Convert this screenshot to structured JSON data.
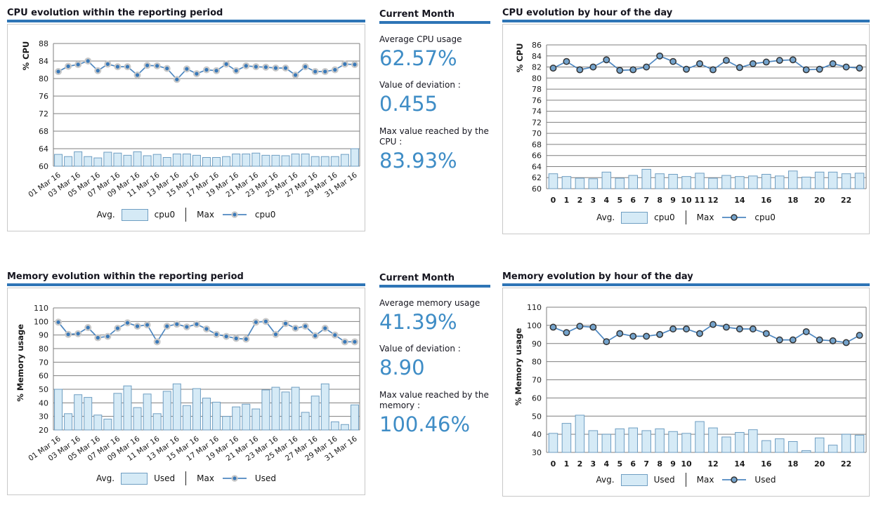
{
  "colors": {
    "accent": "#2e75b6",
    "title_text": "#15151f",
    "value_text": "#3f8dc6",
    "text": "#1a1a1a",
    "grid": "#7f7f7f",
    "panel_border": "#c8c8c8",
    "bar_fill": "#d5eaf6",
    "bar_stroke": "#6f9ec2",
    "line": "#4e87c0",
    "marker_fill": "#3878b8",
    "marker_ring": "#c8c8c8",
    "hourly_marker_fill": "#74a3cc",
    "hourly_marker_stroke": "#333333"
  },
  "summaries": [
    {
      "title": "Current Month",
      "items": [
        {
          "label": "Average CPU usage",
          "value": "62.57%"
        },
        {
          "label": "Value of deviation :",
          "value": "0.455"
        },
        {
          "label": "Max value reached by the CPU :",
          "value": "83.93%"
        }
      ]
    },
    {
      "title": "Current Month",
      "items": [
        {
          "label": "Average memory usage",
          "value": "41.39%"
        },
        {
          "label": "Value of deviation :",
          "value": "8.90"
        },
        {
          "label": "Max value reached by the memory :",
          "value": "100.46%"
        }
      ]
    }
  ],
  "chart_data": [
    {
      "id": "cpu-period",
      "type": "bar",
      "title": "CPU evolution within the reporting period",
      "ylabel": "% CPU",
      "ylim": [
        60,
        88
      ],
      "ystep": 4,
      "grid": "horizontal",
      "legend_position": "bottom",
      "marker_style": "halo",
      "xtick_rotation": -35,
      "categories": [
        "01 Mar 16",
        "02 Mar 16",
        "03 Mar 16",
        "04 Mar 16",
        "05 Mar 16",
        "06 Mar 16",
        "07 Mar 16",
        "08 Mar 16",
        "09 Mar 16",
        "10 Mar 16",
        "11 Mar 16",
        "12 Mar 16",
        "13 Mar 16",
        "14 Mar 16",
        "15 Mar 16",
        "16 Mar 16",
        "17 Mar 16",
        "18 Mar 16",
        "19 Mar 16",
        "20 Mar 16",
        "21 Mar 16",
        "22 Mar 16",
        "23 Mar 16",
        "24 Mar 16",
        "25 Mar 16",
        "26 Mar 16",
        "27 Mar 16",
        "28 Mar 16",
        "29 Mar 16",
        "30 Mar 16",
        "31 Mar 16"
      ],
      "xtick_labels": [
        "01 Mar 16",
        "03 Mar 16",
        "05 Mar 16",
        "07 Mar 16",
        "09 Mar 16",
        "11 Mar 16",
        "13 Mar 16",
        "15 Mar 16",
        "17 Mar 16",
        "19 Mar 16",
        "21 Mar 16",
        "23 Mar 16",
        "25 Mar 16",
        "27 Mar 16",
        "29 Mar 16",
        "31 Mar 16"
      ],
      "legend": {
        "avg_label": "Avg.",
        "avg_series": "cpu0",
        "max_label": "Max",
        "max_series": "cpu0"
      },
      "series": [
        {
          "name": "cpu0",
          "role": "Avg.",
          "type": "bar",
          "values": [
            62.7,
            62.2,
            63.3,
            62.2,
            61.9,
            63.2,
            63.0,
            62.5,
            63.3,
            62.4,
            62.7,
            62.0,
            62.8,
            62.8,
            62.5,
            62.0,
            62.0,
            62.2,
            62.8,
            62.8,
            63.0,
            62.5,
            62.5,
            62.4,
            62.8,
            62.8,
            62.2,
            62.2,
            62.2,
            62.7,
            64.0
          ]
        },
        {
          "name": "cpu0",
          "role": "Max",
          "type": "line",
          "values": [
            81.6,
            82.8,
            83.2,
            84.0,
            81.8,
            83.3,
            82.7,
            82.7,
            80.8,
            83.0,
            82.9,
            82.3,
            79.8,
            82.2,
            81.1,
            82.0,
            81.8,
            83.3,
            81.8,
            82.9,
            82.7,
            82.6,
            82.4,
            82.4,
            80.8,
            82.7,
            81.6,
            81.6,
            82.0,
            83.3,
            83.2
          ]
        }
      ]
    },
    {
      "id": "cpu-hourly",
      "type": "bar",
      "title": "CPU evolution by hour of the day",
      "ylabel": "% CPU",
      "ylim": [
        60,
        86
      ],
      "ystep": 2,
      "grid": "horizontal",
      "legend_position": "bottom",
      "marker_style": "outline",
      "xtick_rotation": 0,
      "categories": [
        "0",
        "1",
        "2",
        "3",
        "4",
        "5",
        "6",
        "7",
        "8",
        "9",
        "10",
        "11",
        "12",
        "13",
        "14",
        "15",
        "16",
        "17",
        "18",
        "19",
        "20",
        "21",
        "22",
        "23"
      ],
      "xtick_labels": [
        "0",
        "1",
        "2",
        "3",
        "4",
        "5",
        "6",
        "7",
        "8",
        "9",
        "10",
        "11",
        "12",
        "14",
        "16",
        "18",
        "20",
        "22"
      ],
      "legend": {
        "avg_label": "Avg.",
        "avg_series": "cpu0",
        "max_label": "Max",
        "max_series": "cpu0"
      },
      "series": [
        {
          "name": "cpu0",
          "role": "Avg.",
          "type": "bar",
          "values": [
            62.7,
            62.2,
            61.9,
            61.8,
            63.0,
            61.9,
            62.4,
            63.5,
            62.7,
            62.6,
            62.2,
            62.8,
            61.9,
            62.4,
            62.2,
            62.3,
            62.6,
            62.3,
            63.2,
            62.1,
            63.0,
            63.0,
            62.7,
            62.8
          ]
        },
        {
          "name": "cpu0",
          "role": "Max",
          "type": "line",
          "values": [
            81.8,
            83.0,
            81.5,
            82.0,
            83.3,
            81.4,
            81.5,
            82.0,
            84.0,
            83.0,
            81.6,
            82.6,
            81.5,
            83.2,
            81.9,
            82.6,
            82.9,
            83.2,
            83.3,
            81.5,
            81.6,
            82.6,
            82.0,
            81.8
          ]
        }
      ]
    },
    {
      "id": "mem-period",
      "type": "bar",
      "title": "Memory evolution within the reporting period",
      "ylabel": "% Memory usage",
      "ylim": [
        20,
        110
      ],
      "ystep": 10,
      "grid": "horizontal",
      "legend_position": "bottom",
      "marker_style": "halo",
      "xtick_rotation": -35,
      "categories": [
        "01 Mar 16",
        "02 Mar 16",
        "03 Mar 16",
        "04 Mar 16",
        "05 Mar 16",
        "06 Mar 16",
        "07 Mar 16",
        "08 Mar 16",
        "09 Mar 16",
        "10 Mar 16",
        "11 Mar 16",
        "12 Mar 16",
        "13 Mar 16",
        "14 Mar 16",
        "15 Mar 16",
        "16 Mar 16",
        "17 Mar 16",
        "18 Mar 16",
        "19 Mar 16",
        "20 Mar 16",
        "21 Mar 16",
        "22 Mar 16",
        "23 Mar 16",
        "24 Mar 16",
        "25 Mar 16",
        "26 Mar 16",
        "27 Mar 16",
        "28 Mar 16",
        "29 Mar 16",
        "30 Mar 16",
        "31 Mar 16"
      ],
      "xtick_labels": [
        "01 Mar 16",
        "03 Mar 16",
        "05 Mar 16",
        "07 Mar 16",
        "09 Mar 16",
        "11 Mar 16",
        "13 Mar 16",
        "15 Mar 16",
        "17 Mar 16",
        "19 Mar 16",
        "21 Mar 16",
        "23 Mar 16",
        "25 Mar 16",
        "27 Mar 16",
        "29 Mar 16",
        "31 Mar 16"
      ],
      "legend": {
        "avg_label": "Avg.",
        "avg_series": "Used",
        "max_label": "Max",
        "max_series": "Used"
      },
      "series": [
        {
          "name": "Used",
          "role": "Avg.",
          "type": "bar",
          "values": [
            50,
            32,
            46,
            44,
            31,
            28,
            47,
            52.5,
            36.5,
            46.5,
            32,
            48.5,
            54,
            38,
            50.5,
            43.5,
            40.5,
            30,
            37,
            39,
            35.5,
            49.5,
            51.5,
            48,
            51.5,
            33,
            45,
            54,
            26,
            24,
            38.5
          ]
        },
        {
          "name": "Used",
          "role": "Max",
          "type": "line",
          "values": [
            99.5,
            90.5,
            91,
            95.5,
            88,
            89,
            95,
            99,
            96.5,
            97.5,
            85,
            96.5,
            98,
            96,
            98,
            94.5,
            90.5,
            89,
            87.5,
            87,
            99.5,
            100,
            90.5,
            98.5,
            95,
            96.5,
            89.5,
            95,
            90,
            85,
            85
          ]
        }
      ]
    },
    {
      "id": "mem-hourly",
      "type": "bar",
      "title": "Memory evolution by hour of the day",
      "ylabel": "% Memory usage",
      "ylim": [
        30,
        110
      ],
      "ystep": 10,
      "grid": "horizontal",
      "legend_position": "bottom",
      "marker_style": "outline",
      "xtick_rotation": 0,
      "categories": [
        "0",
        "1",
        "2",
        "3",
        "4",
        "5",
        "6",
        "7",
        "8",
        "9",
        "10",
        "11",
        "12",
        "13",
        "14",
        "15",
        "16",
        "17",
        "18",
        "19",
        "20",
        "21",
        "22",
        "23"
      ],
      "xtick_labels": [
        "0",
        "1",
        "2",
        "3",
        "4",
        "5",
        "6",
        "7",
        "8",
        "9",
        "10",
        "12",
        "14",
        "16",
        "18",
        "20",
        "22"
      ],
      "legend": {
        "avg_label": "Avg.",
        "avg_series": "Used",
        "max_label": "Max",
        "max_series": "Used"
      },
      "series": [
        {
          "name": "Used",
          "role": "Avg.",
          "type": "bar",
          "values": [
            40.5,
            46,
            50.5,
            42,
            40,
            43,
            43.5,
            42,
            43,
            41.5,
            40.5,
            47,
            43.5,
            38.5,
            41,
            42.5,
            36.5,
            37.5,
            36,
            31,
            38,
            34,
            40,
            39.5
          ]
        },
        {
          "name": "Used",
          "role": "Max",
          "type": "line",
          "values": [
            99,
            96,
            99.5,
            99,
            91,
            95.5,
            94,
            94,
            95,
            98,
            98,
            95.5,
            100.5,
            99,
            98,
            98,
            95.5,
            92,
            92,
            96.5,
            92,
            91.5,
            90.5,
            94.5
          ]
        }
      ]
    }
  ]
}
